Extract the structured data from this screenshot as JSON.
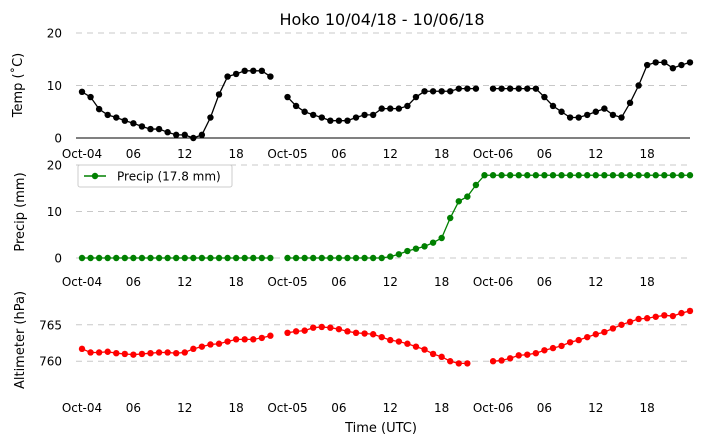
{
  "chart_data": {
    "type": "line",
    "title": "Hoko 10/04/18 - 10/06/18",
    "xlabel": "Time (UTC)",
    "x_range_hours": [
      0,
      71
    ],
    "x_ticks": [
      {
        "hour": 0,
        "label": "Oct-04"
      },
      {
        "hour": 6,
        "label": "06"
      },
      {
        "hour": 12,
        "label": "12"
      },
      {
        "hour": 18,
        "label": "18"
      },
      {
        "hour": 24,
        "label": "Oct-05"
      },
      {
        "hour": 30,
        "label": "06"
      },
      {
        "hour": 36,
        "label": "12"
      },
      {
        "hour": 42,
        "label": "18"
      },
      {
        "hour": 48,
        "label": "Oct-06"
      },
      {
        "hour": 54,
        "label": "06"
      },
      {
        "hour": 60,
        "label": "12"
      },
      {
        "hour": 66,
        "label": "18"
      }
    ],
    "panels": [
      {
        "id": "temp",
        "ylabel": "Temp ($^\\circ$C)",
        "ylabel_display": "Temp (˚C)",
        "ylim": [
          0,
          20
        ],
        "yticks": [
          0,
          10,
          20
        ],
        "grid": true,
        "color": "#000000",
        "legend": null,
        "x": [
          0,
          1,
          2,
          3,
          4,
          5,
          6,
          7,
          8,
          9,
          10,
          11,
          12,
          13,
          14,
          15,
          16,
          17,
          18,
          19,
          20,
          21,
          22,
          23,
          24,
          25,
          26,
          27,
          28,
          29,
          30,
          31,
          32,
          33,
          34,
          35,
          36,
          37,
          38,
          39,
          40,
          41,
          42,
          43,
          44,
          45,
          46,
          47,
          48,
          49,
          50,
          51,
          52,
          53,
          54,
          55,
          56,
          57,
          58,
          59,
          60,
          61,
          62,
          63,
          64,
          65,
          66,
          67,
          68,
          69,
          70,
          71
        ],
        "values": [
          8.8,
          7.8,
          5.5,
          4.4,
          3.9,
          3.3,
          2.8,
          2.2,
          1.7,
          1.7,
          1.1,
          0.6,
          0.6,
          0,
          0.6,
          3.9,
          8.3,
          11.7,
          12.2,
          12.8,
          12.8,
          12.8,
          11.7,
          null,
          7.8,
          6.1,
          5.0,
          4.4,
          3.9,
          3.3,
          3.3,
          3.3,
          3.9,
          4.4,
          4.4,
          5.6,
          5.6,
          5.6,
          6.1,
          7.8,
          8.9,
          8.9,
          8.9,
          8.9,
          9.4,
          9.4,
          9.4,
          null,
          9.4,
          9.4,
          9.4,
          9.4,
          9.4,
          9.4,
          7.8,
          6.1,
          5.0,
          3.9,
          3.9,
          4.4,
          5.0,
          5.6,
          4.4,
          3.9,
          6.7,
          10.0,
          13.9,
          14.4,
          14.4,
          13.3,
          13.9,
          14.4
        ]
      },
      {
        "id": "precip",
        "ylabel": "Precip (mm)",
        "ylim": [
          0,
          20
        ],
        "yticks": [
          0,
          10,
          20
        ],
        "grid": true,
        "color": "#008000",
        "legend": "Precip (17.8 mm)",
        "x": [
          0,
          1,
          2,
          3,
          4,
          5,
          6,
          7,
          8,
          9,
          10,
          11,
          12,
          13,
          14,
          15,
          16,
          17,
          18,
          19,
          20,
          21,
          22,
          23,
          24,
          25,
          26,
          27,
          28,
          29,
          30,
          31,
          32,
          33,
          34,
          35,
          36,
          37,
          38,
          39,
          40,
          41,
          42,
          43,
          44,
          45,
          46,
          47,
          48,
          49,
          50,
          51,
          52,
          53,
          54,
          55,
          56,
          57,
          58,
          59,
          60,
          61,
          62,
          63,
          64,
          65,
          66,
          67,
          68,
          69,
          70,
          71
        ],
        "values": [
          0,
          0,
          0,
          0,
          0,
          0,
          0,
          0,
          0,
          0,
          0,
          0,
          0,
          0,
          0,
          0,
          0,
          0,
          0,
          0,
          0,
          0,
          0,
          null,
          0,
          0,
          0,
          0,
          0,
          0,
          0,
          0,
          0,
          0,
          0,
          0,
          0.3,
          0.8,
          1.5,
          2.0,
          2.5,
          3.3,
          4.3,
          8.6,
          12.2,
          13.2,
          15.7,
          17.8,
          17.8,
          17.8,
          17.8,
          17.8,
          17.8,
          17.8,
          17.8,
          17.8,
          17.8,
          17.8,
          17.8,
          17.8,
          17.8,
          17.8,
          17.8,
          17.8,
          17.8,
          17.8,
          17.8,
          17.8,
          17.8,
          17.8,
          17.8,
          17.8
        ]
      },
      {
        "id": "altimeter",
        "ylabel": "Altimeter (hPa)",
        "ylim": [
          755.5,
          769.5
        ],
        "yticks": [
          760,
          765
        ],
        "grid": true,
        "color": "#ff0000",
        "legend": null,
        "x": [
          0,
          1,
          2,
          3,
          4,
          5,
          6,
          7,
          8,
          9,
          10,
          11,
          12,
          13,
          14,
          15,
          16,
          17,
          18,
          19,
          20,
          21,
          22,
          23,
          24,
          25,
          26,
          27,
          28,
          29,
          30,
          31,
          32,
          33,
          34,
          35,
          36,
          37,
          38,
          39,
          40,
          41,
          42,
          43,
          44,
          45,
          46,
          47,
          48,
          49,
          50,
          51,
          52,
          53,
          54,
          55,
          56,
          57,
          58,
          59,
          60,
          61,
          62,
          63,
          64,
          65,
          66,
          67,
          68,
          69,
          70,
          71
        ],
        "values": [
          761.7,
          761.2,
          761.2,
          761.3,
          761.1,
          761.0,
          760.9,
          761.0,
          761.1,
          761.2,
          761.2,
          761.1,
          761.2,
          761.7,
          762.0,
          762.3,
          762.4,
          762.7,
          763.0,
          763.0,
          763.0,
          763.2,
          763.5,
          null,
          763.9,
          764.1,
          764.2,
          764.6,
          764.7,
          764.6,
          764.4,
          764.1,
          763.9,
          763.8,
          763.7,
          763.3,
          762.9,
          762.7,
          762.4,
          762.0,
          761.6,
          761.0,
          760.6,
          760.0,
          759.7,
          759.7,
          null,
          null,
          760.0,
          760.1,
          760.4,
          760.8,
          760.9,
          761.1,
          761.5,
          761.8,
          762.1,
          762.6,
          762.9,
          763.3,
          763.7,
          764.0,
          764.5,
          765.0,
          765.4,
          765.8,
          765.9,
          766.1,
          766.3,
          766.2,
          766.6,
          766.9
        ]
      }
    ]
  }
}
